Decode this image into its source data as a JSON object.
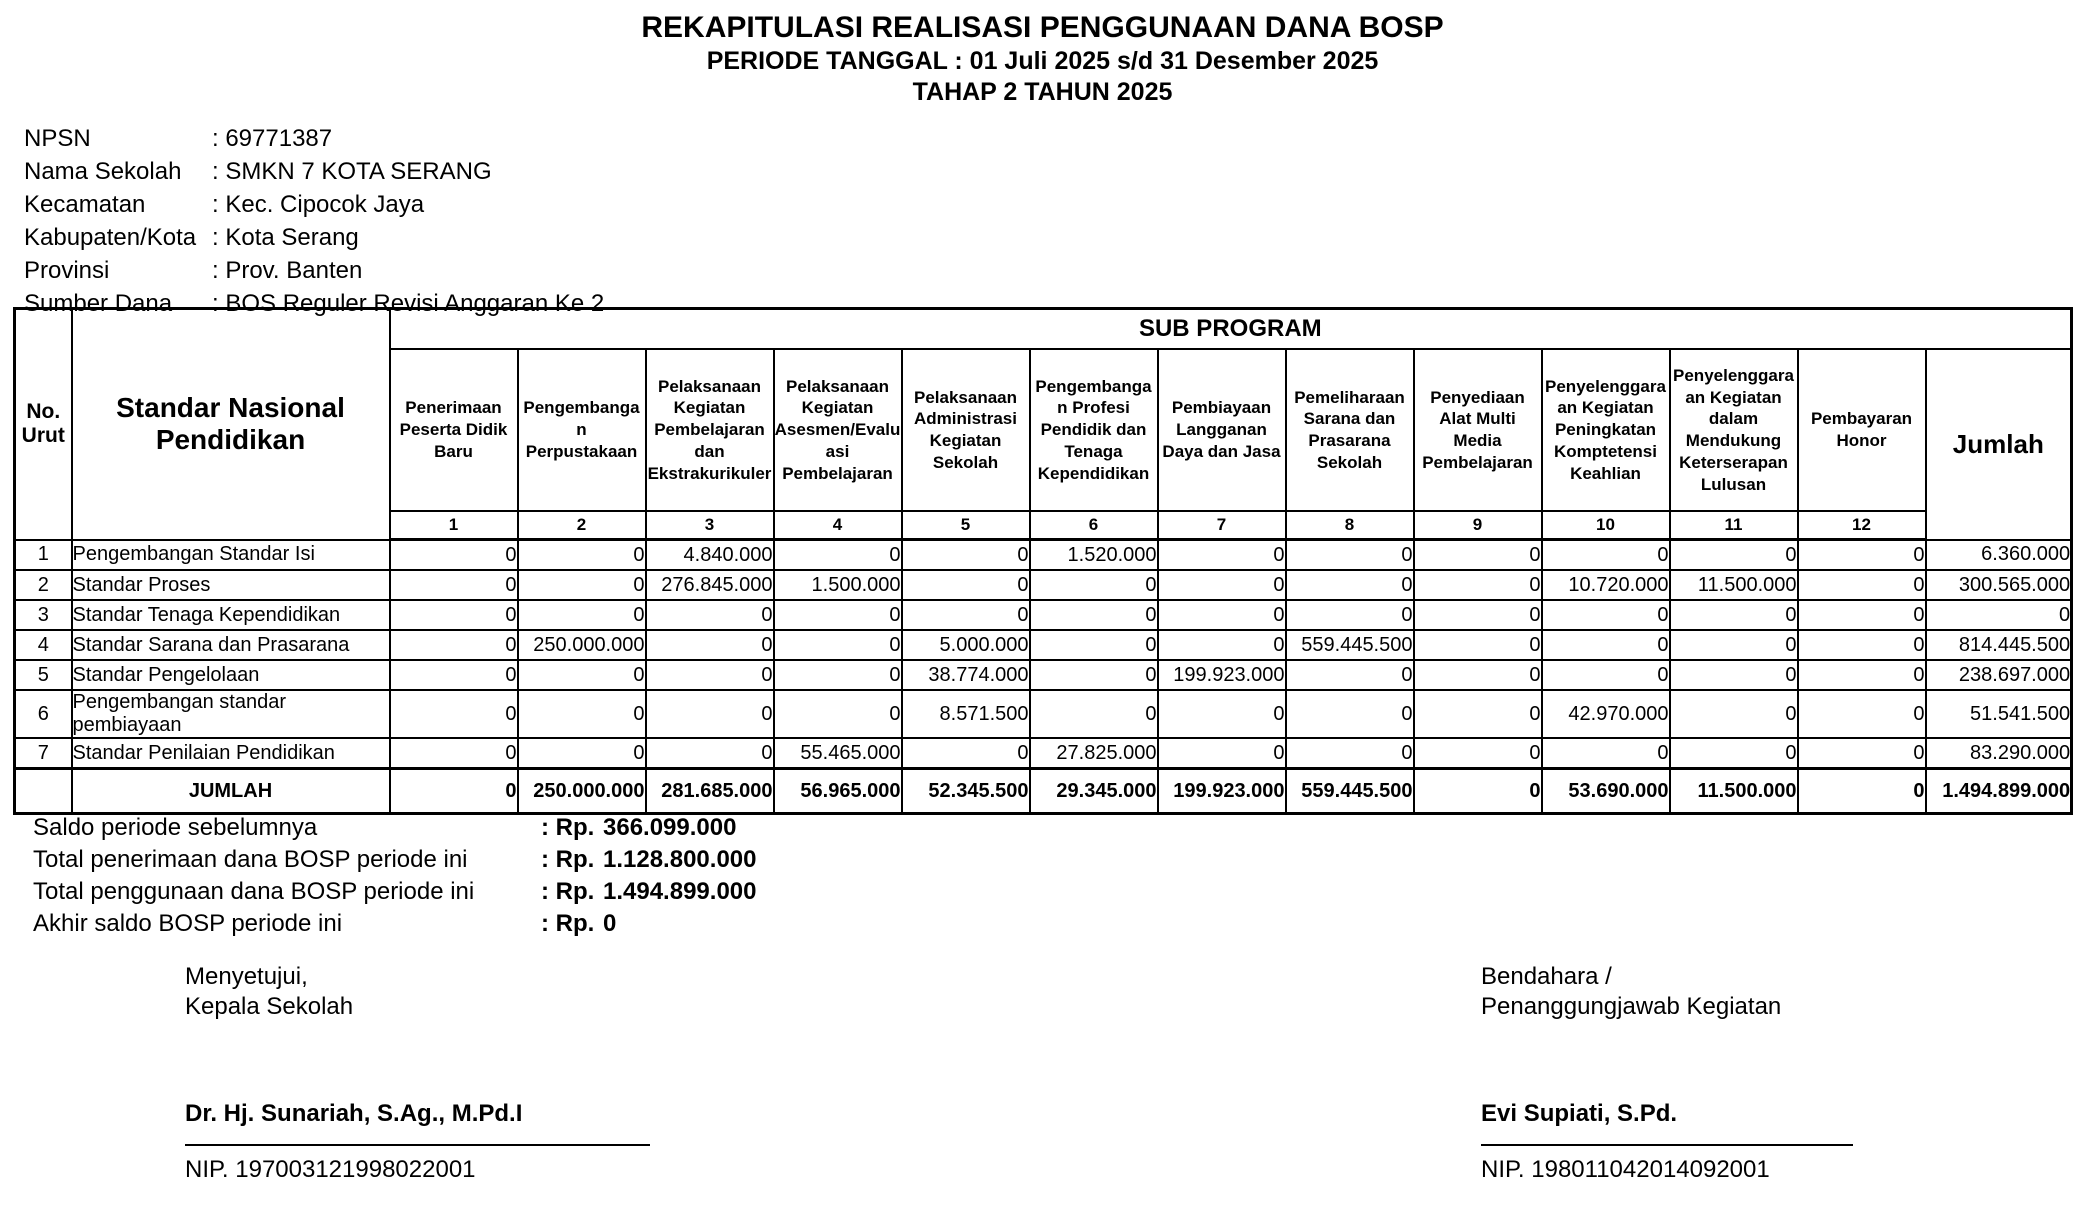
{
  "colors": {
    "text": "#000000",
    "background": "#ffffff",
    "border": "#000000"
  },
  "header": {
    "title": "REKAPITULASI REALISASI PENGGUNAAN DANA BOSP",
    "subtitle1": "PERIODE TANGGAL : 01 Juli 2025 s/d 31 Desember 2025",
    "subtitle2": "TAHAP 2 TAHUN 2025"
  },
  "school_info": {
    "rows": [
      {
        "label": "NPSN",
        "value": ": 69771387"
      },
      {
        "label": "Nama Sekolah",
        "value": ": SMKN 7 KOTA SERANG"
      },
      {
        "label": "Kecamatan",
        "value": ": Kec. Cipocok Jaya"
      },
      {
        "label": "Kabupaten/Kota",
        "value": ": Kota Serang"
      },
      {
        "label": "Provinsi",
        "value": ": Prov. Banten"
      },
      {
        "label": "Sumber Dana",
        "value": ": BOS Reguler Revisi Anggaran Ke 2"
      }
    ]
  },
  "table": {
    "col_no_label": "No. Urut",
    "col_snp_label": "Standar Nasional Pendidikan",
    "sub_program_label": "SUB PROGRAM",
    "jumlah_label": "Jumlah",
    "sub_columns": [
      "Penerimaan Peserta Didik Baru",
      "Pengembangan Perpustakaan",
      "Pelaksanaan Kegiatan Pembelajaran dan Ekstrakurikuler",
      "Pelaksanaan Kegiatan Asesmen/Evaluasi Pembelajaran",
      "Pelaksanaan Administrasi Kegiatan Sekolah",
      "Pengembangan Profesi Pendidik dan Tenaga Kependidikan",
      "Pembiayaan Langganan Daya dan Jasa",
      "Pemeliharaan Sarana dan Prasarana Sekolah",
      "Penyediaan Alat Multi Media Pembelajaran",
      "Penyelenggaraan Kegiatan Peningkatan Komptetensi Keahlian",
      "Penyelenggaraan Kegiatan dalam Mendukung Keterserapan Lulusan",
      "Pembayaran Honor"
    ],
    "column_numbers": [
      "1",
      "2",
      "3",
      "4",
      "5",
      "6",
      "7",
      "8",
      "9",
      "10",
      "11",
      "12"
    ],
    "rows": [
      {
        "no": "1",
        "name": "Pengembangan Standar Isi",
        "values": [
          "0",
          "0",
          "4.840.000",
          "0",
          "0",
          "1.520.000",
          "0",
          "0",
          "0",
          "0",
          "0",
          "0"
        ],
        "total": "6.360.000"
      },
      {
        "no": "2",
        "name": "Standar Proses",
        "values": [
          "0",
          "0",
          "276.845.000",
          "1.500.000",
          "0",
          "0",
          "0",
          "0",
          "0",
          "10.720.000",
          "11.500.000",
          "0"
        ],
        "total": "300.565.000"
      },
      {
        "no": "3",
        "name": "Standar Tenaga Kependidikan",
        "values": [
          "0",
          "0",
          "0",
          "0",
          "0",
          "0",
          "0",
          "0",
          "0",
          "0",
          "0",
          "0"
        ],
        "total": "0"
      },
      {
        "no": "4",
        "name": "Standar Sarana dan Prasarana",
        "values": [
          "0",
          "250.000.000",
          "0",
          "0",
          "5.000.000",
          "0",
          "0",
          "559.445.500",
          "0",
          "0",
          "0",
          "0"
        ],
        "total": "814.445.500"
      },
      {
        "no": "5",
        "name": "Standar Pengelolaan",
        "values": [
          "0",
          "0",
          "0",
          "0",
          "38.774.000",
          "0",
          "199.923.000",
          "0",
          "0",
          "0",
          "0",
          "0"
        ],
        "total": "238.697.000"
      },
      {
        "no": "6",
        "name": "Pengembangan standar pembiayaan",
        "values": [
          "0",
          "0",
          "0",
          "0",
          "8.571.500",
          "0",
          "0",
          "0",
          "0",
          "42.970.000",
          "0",
          "0"
        ],
        "total": "51.541.500"
      },
      {
        "no": "7",
        "name": "Standar Penilaian Pendidikan",
        "values": [
          "0",
          "0",
          "0",
          "55.465.000",
          "0",
          "27.825.000",
          "0",
          "0",
          "0",
          "0",
          "0",
          "0"
        ],
        "total": "83.290.000"
      }
    ],
    "total_row": {
      "label": "JUMLAH",
      "values": [
        "0",
        "250.000.000",
        "281.685.000",
        "56.965.000",
        "52.345.500",
        "29.345.000",
        "199.923.000",
        "559.445.500",
        "0",
        "53.690.000",
        "11.500.000",
        "0"
      ],
      "total": "1.494.899.000"
    }
  },
  "summary": {
    "rows": [
      {
        "label": "Saldo periode sebelumnya",
        "prefix": ": Rp.",
        "value": "366.099.000"
      },
      {
        "label": "Total penerimaan dana BOSP periode ini",
        "prefix": ": Rp.",
        "value": "1.128.800.000"
      },
      {
        "label": "Total penggunaan dana BOSP periode ini",
        "prefix": ": Rp.",
        "value": "1.494.899.000"
      },
      {
        "label": "Akhir saldo BOSP periode ini",
        "prefix": ": Rp.",
        "value": "0"
      }
    ]
  },
  "signatures": {
    "left": {
      "role1": "Menyetujui,",
      "role2": "Kepala Sekolah",
      "name": "Dr. Hj. Sunariah, S.Ag., M.Pd.I",
      "nip": "NIP. 197003121998022001"
    },
    "right": {
      "role1": "Bendahara /",
      "role2": "Penanggungjawab Kegiatan",
      "name": "Evi Supiati, S.Pd.",
      "nip": "NIP. 198011042014092001"
    }
  }
}
